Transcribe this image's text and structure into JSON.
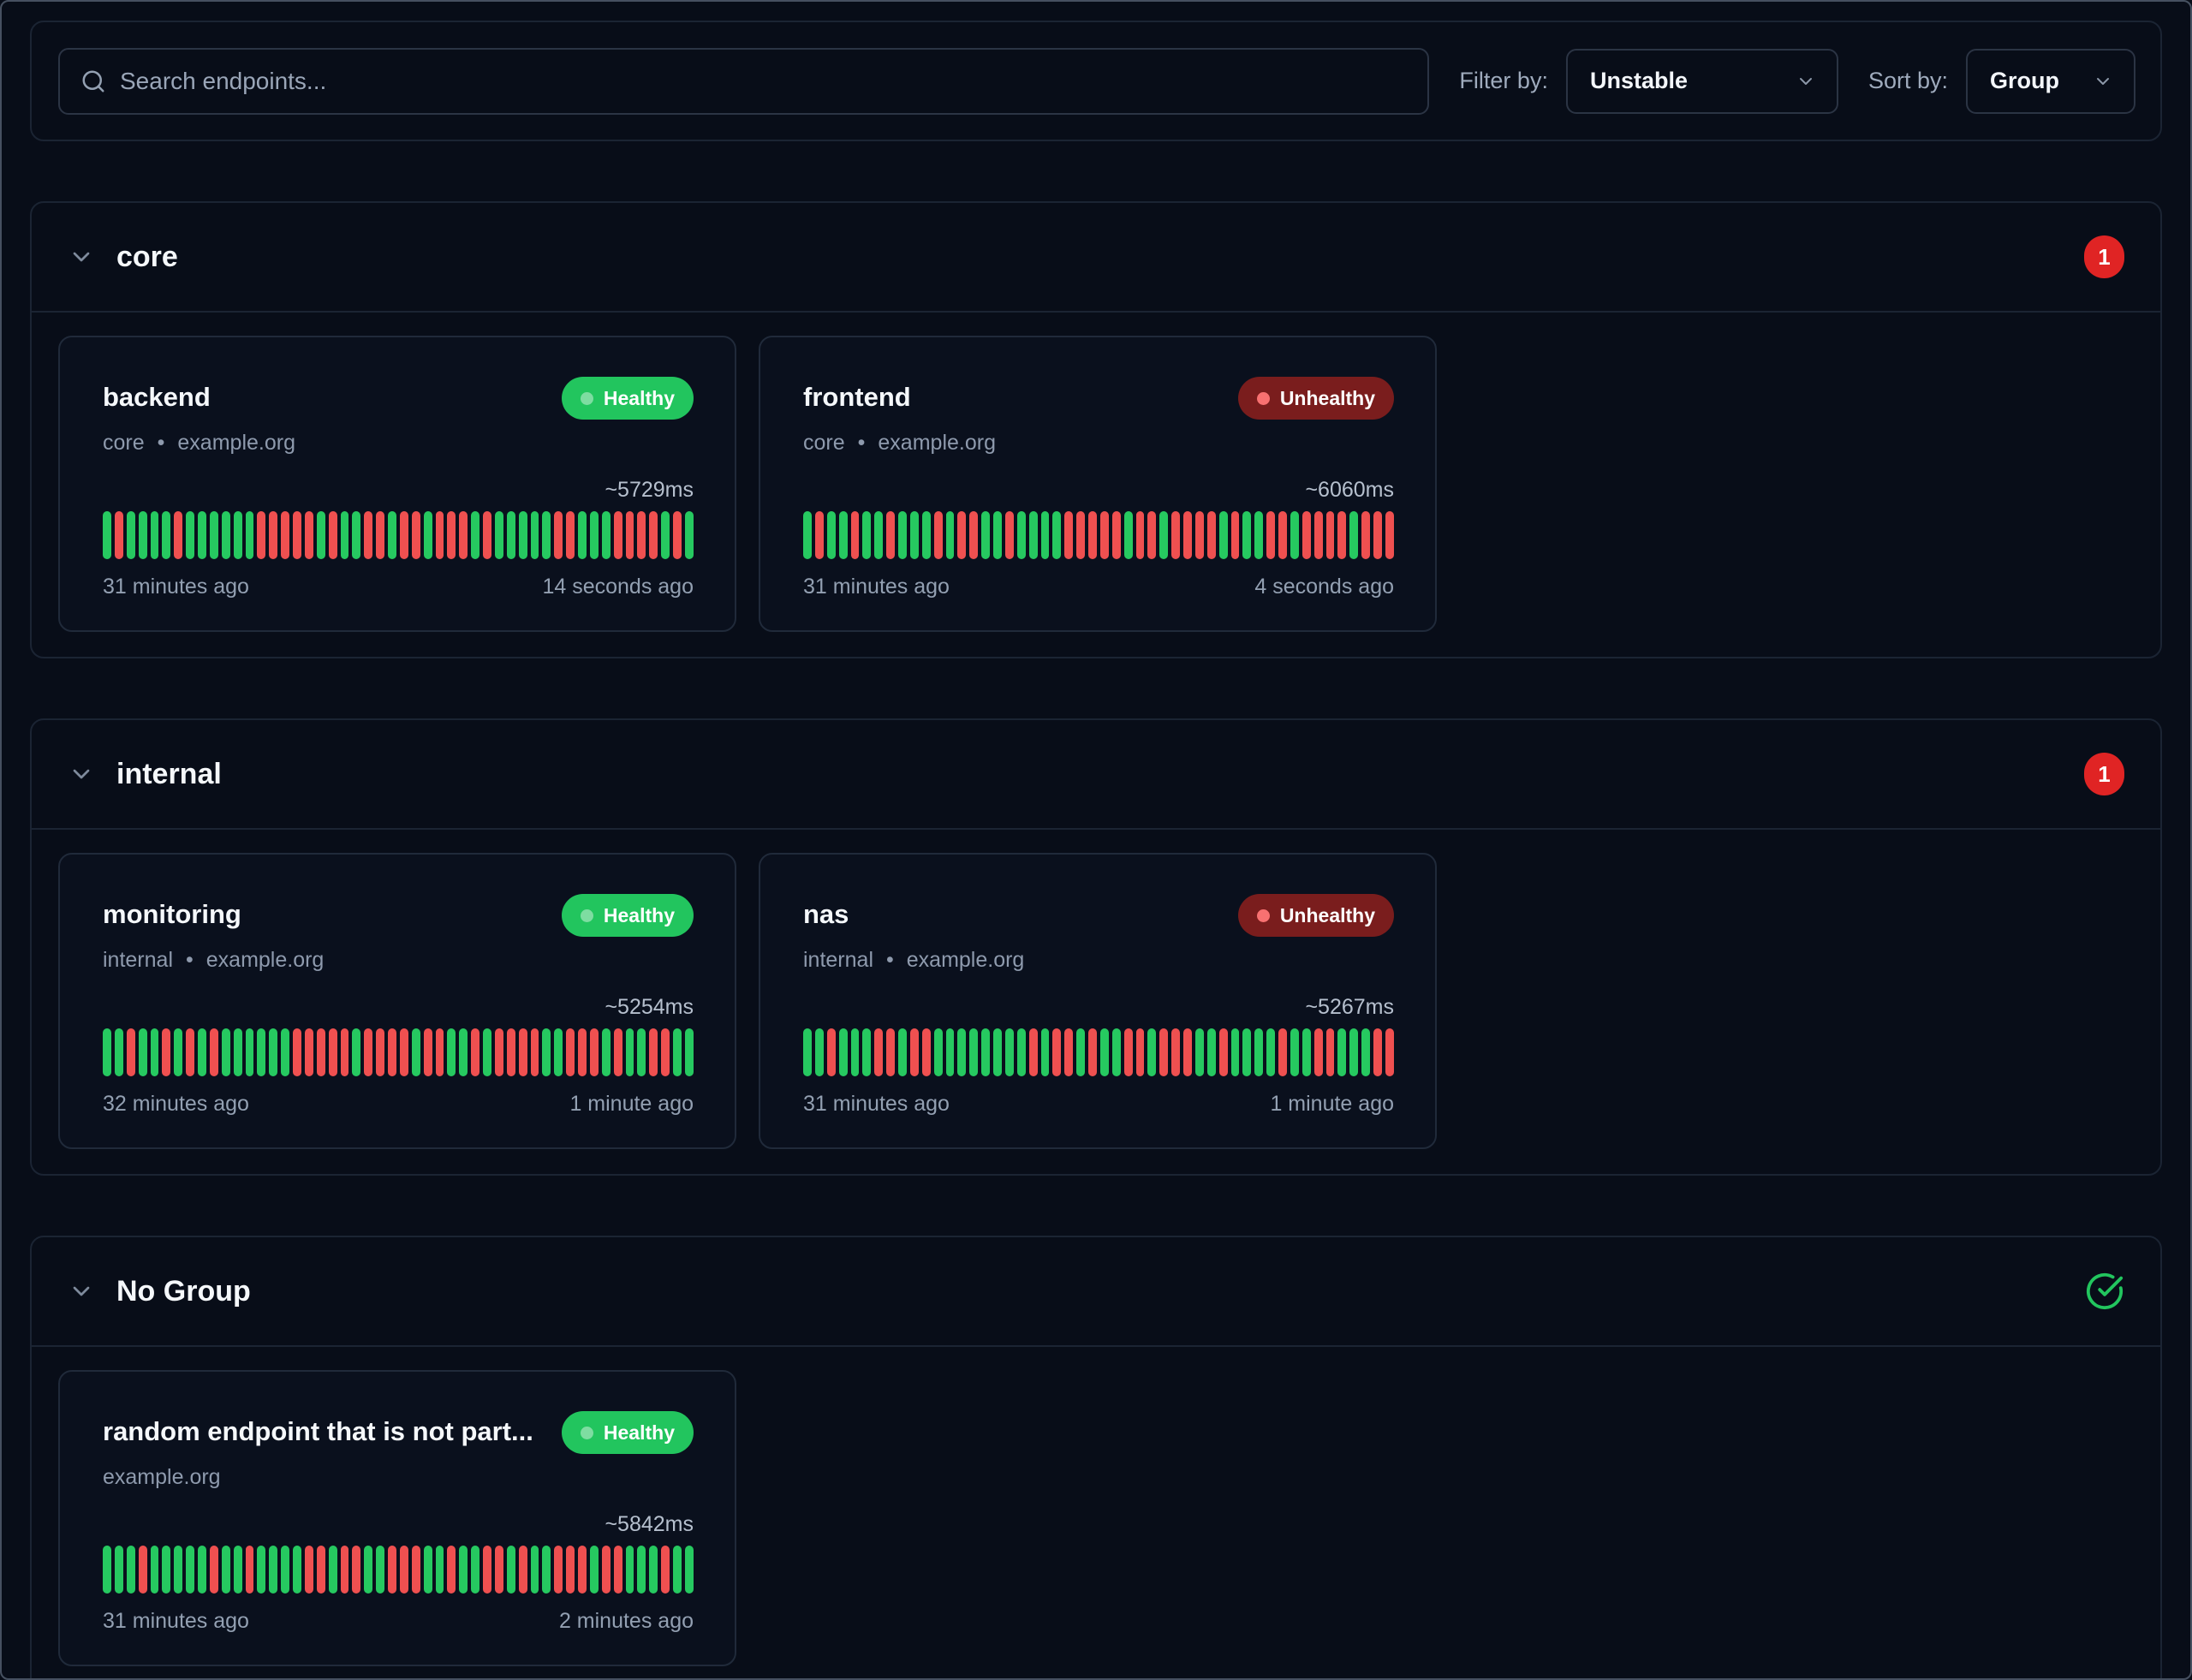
{
  "toolbar": {
    "search": {
      "placeholder": "Search endpoints...",
      "icon": "search-icon"
    },
    "filter": {
      "label": "Filter by:",
      "value": "Unstable"
    },
    "sort": {
      "label": "Sort by:",
      "value": "Group"
    }
  },
  "colors": {
    "healthy_badge": "#22c55e",
    "unhealthy_badge": "#7a1d1d",
    "unhealthy_dot": "#f87171",
    "bar_green": "#26c960",
    "bar_red": "#ef5050",
    "count_badge_red": "#e02424",
    "check_icon_green": "#22c55e",
    "page_background": "#080d18"
  },
  "groups": [
    {
      "name": "core",
      "badge": {
        "type": "count",
        "value": "1"
      },
      "endpoints": [
        {
          "name": "backend",
          "status": "Healthy",
          "group": "core",
          "separator": "•",
          "host": "example.org",
          "response_time": "~5729ms",
          "oldest": "31 minutes ago",
          "newest": "14 seconds ago",
          "history": "GRGGGGRGGGGGGRRRRRGRGGRRGRRGRRRGRGGGGGRRGGGRRRRGRG"
        },
        {
          "name": "frontend",
          "status": "Unhealthy",
          "group": "core",
          "separator": "•",
          "host": "example.org",
          "response_time": "~6060ms",
          "oldest": "31 minutes ago",
          "newest": "4 seconds ago",
          "history": "GRGGRGGRGGGRGRRGGRGGGGRRRRRGRRGRRRRGRGGRRGRRRRGRRR"
        }
      ]
    },
    {
      "name": "internal",
      "badge": {
        "type": "count",
        "value": "1"
      },
      "endpoints": [
        {
          "name": "monitoring",
          "status": "Healthy",
          "group": "internal",
          "separator": "•",
          "host": "example.org",
          "response_time": "~5254ms",
          "oldest": "32 minutes ago",
          "newest": "1 minute ago",
          "history": "GGRGGRGRGRGGGGGGRRRRRGRRRRGRRGGRGRRRRGGRRRGRGGRRGG"
        },
        {
          "name": "nas",
          "status": "Unhealthy",
          "group": "internal",
          "separator": "•",
          "host": "example.org",
          "response_time": "~5267ms",
          "oldest": "31 minutes ago",
          "newest": "1 minute ago",
          "history": "GGRGGGRRGRRGGGGGGGGRGRRGRGGRRGRRRGGRGGGGRGGRRGGGRR"
        }
      ]
    },
    {
      "name": "No Group",
      "badge": {
        "type": "ok"
      },
      "endpoints": [
        {
          "name": "random endpoint that is not part...",
          "status": "Healthy",
          "group": "",
          "separator": "",
          "host": "example.org",
          "response_time": "~5842ms",
          "oldest": "31 minutes ago",
          "newest": "2 minutes ago",
          "history": "GGGRGGGGGRGGRGGGGRRGRRGGRRRGGRGGRRGRGGRRRGRRGGGRGG"
        }
      ]
    }
  ]
}
